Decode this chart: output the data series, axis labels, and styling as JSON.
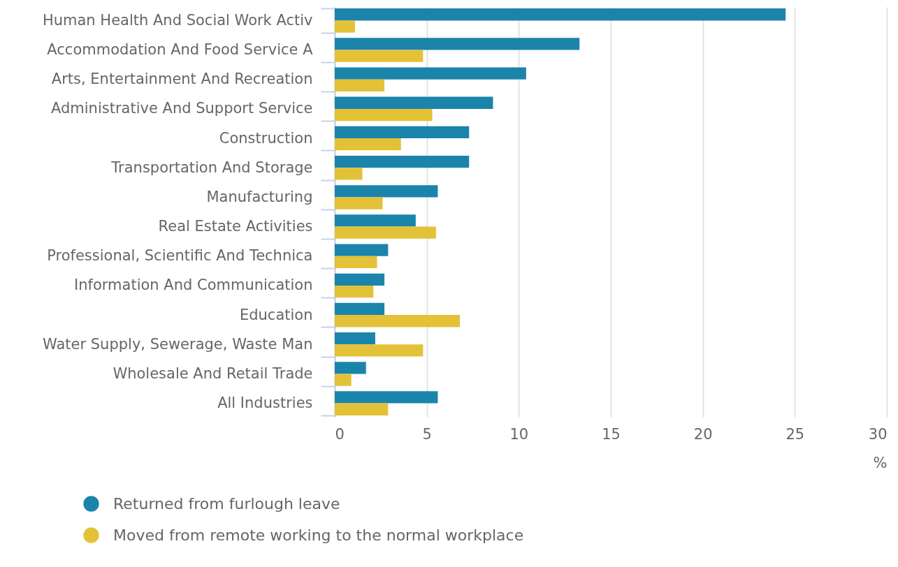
{
  "chart_data": {
    "type": "bar",
    "orientation": "horizontal",
    "categories": [
      "Human Health And Social Work Activ",
      "Accommodation And Food Service A",
      "Arts, Entertainment And Recreation",
      "Administrative And Support Service",
      "Construction",
      "Transportation And Storage",
      "Manufacturing",
      "Real Estate Activities",
      "Professional, Scientific And Technica",
      "Information And Communication",
      "Education",
      "Water Supply, Sewerage, Waste Man",
      "Wholesale And Retail Trade",
      "All Industries"
    ],
    "series": [
      {
        "name": "Returned from furlough leave",
        "color": "#1b84ab",
        "values": [
          24.5,
          13.3,
          10.4,
          8.6,
          7.3,
          7.3,
          5.6,
          4.4,
          2.9,
          2.7,
          2.7,
          2.2,
          1.7,
          5.6
        ]
      },
      {
        "name": "Moved from remote working to the normal workplace",
        "color": "#e3c238",
        "values": [
          1.1,
          4.8,
          2.7,
          5.3,
          3.6,
          1.5,
          2.6,
          5.5,
          2.3,
          2.1,
          6.8,
          4.8,
          0.9,
          2.9
        ]
      }
    ],
    "xlabel": "%",
    "xlim": [
      0,
      30
    ],
    "xticks": [
      0,
      5,
      10,
      15,
      20,
      25,
      30
    ],
    "grid": "x",
    "legend": "bottom"
  }
}
